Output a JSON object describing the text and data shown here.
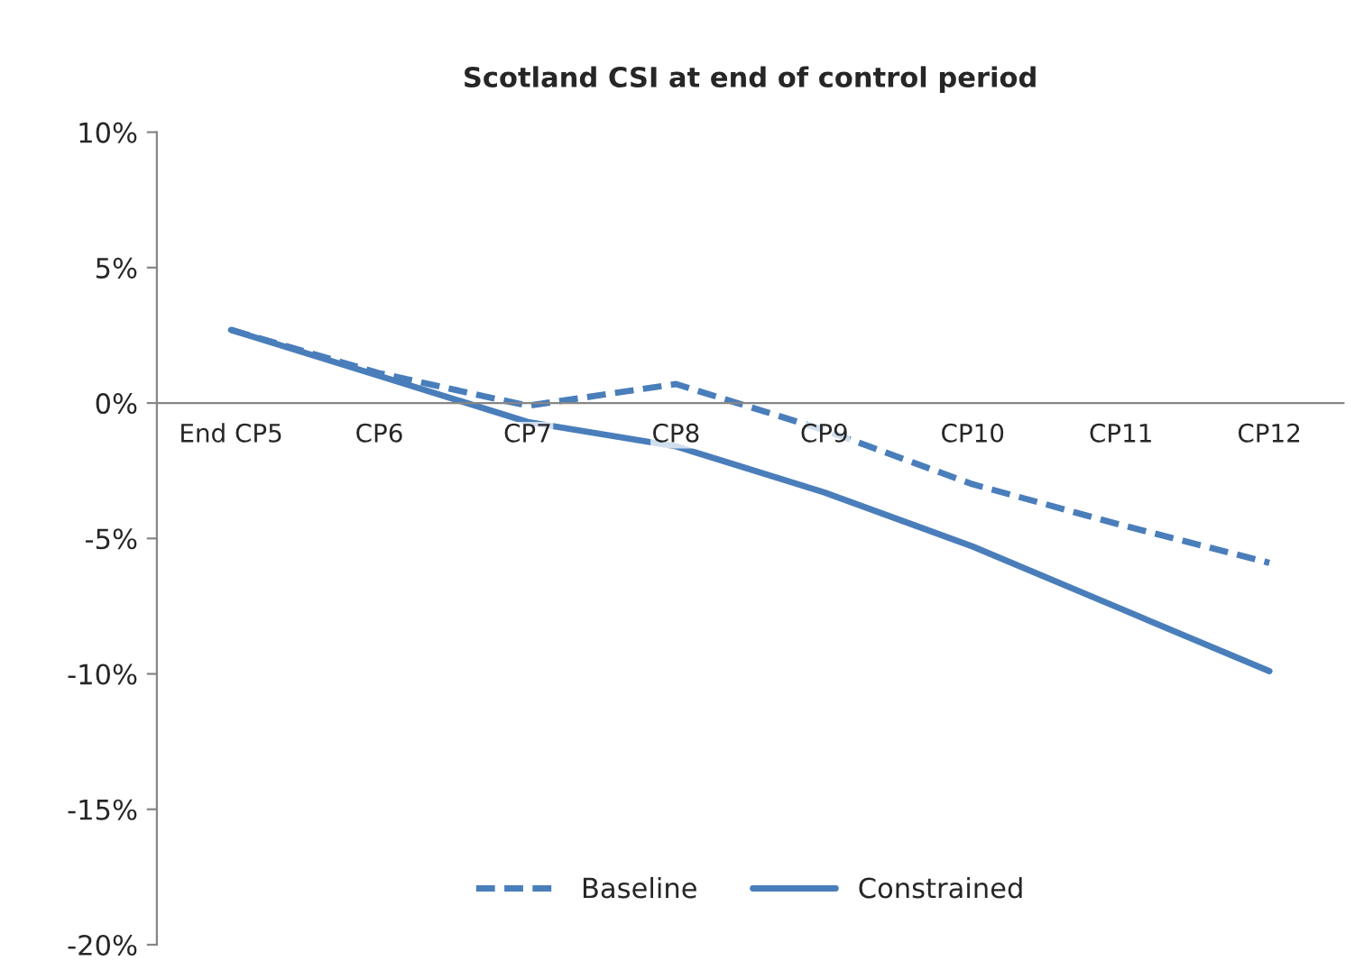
{
  "chart_data": {
    "type": "line",
    "title": "Scotland CSI at end of control period",
    "categories": [
      "End CP5",
      "CP6",
      "CP7",
      "CP8",
      "CP9",
      "CP10",
      "CP11",
      "CP12"
    ],
    "series": [
      {
        "name": "Baseline",
        "color": "#4a7ebb",
        "line_style": "dashed",
        "values": [
          2.7,
          1.1,
          -0.1,
          0.7,
          -1.0,
          -3.0,
          -4.5,
          -5.9
        ]
      },
      {
        "name": "Constrained",
        "color": "#4a7ebb",
        "line_style": "solid",
        "values": [
          2.7,
          1.0,
          -0.7,
          -1.6,
          -3.3,
          -5.3,
          -7.6,
          -9.9
        ]
      }
    ],
    "ylim": [
      -20,
      10
    ],
    "yticks": [
      {
        "value": -20,
        "label": "-20%"
      },
      {
        "value": -15,
        "label": "-15%"
      },
      {
        "value": -10,
        "label": "-10%"
      },
      {
        "value": -5,
        "label": "-5%"
      },
      {
        "value": 0,
        "label": "0%"
      },
      {
        "value": 5,
        "label": "5%"
      },
      {
        "value": 10,
        "label": "10%"
      }
    ],
    "grid": false,
    "legend": "bottom",
    "marker": "none"
  }
}
